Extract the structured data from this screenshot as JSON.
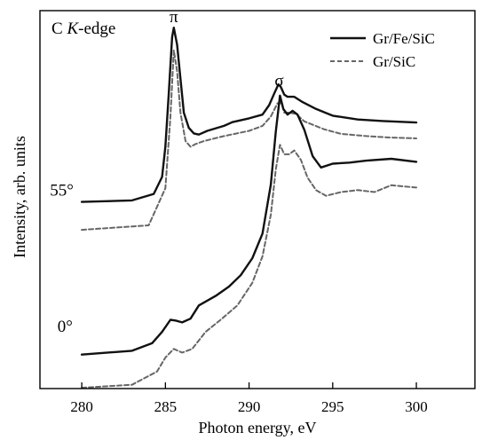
{
  "chart_data": {
    "type": "line",
    "title": "C K-edge",
    "title_parts": {
      "prefix": "C ",
      "italic": "K",
      "suffix": "-edge"
    },
    "xlabel": "Photon energy, eV",
    "ylabel": "Intensity, arb. units",
    "xlim": [
      277.5,
      303.5
    ],
    "ylim": [
      0,
      10
    ],
    "xticks": [
      280,
      285,
      290,
      295,
      300
    ],
    "xtick_labels": [
      "280",
      "285",
      "290",
      "295",
      "300"
    ],
    "y_ticks_shown": false,
    "grid": false,
    "legend_position": "top-right",
    "legend": [
      {
        "label": "Gr/Fe/SiC",
        "style": "solid",
        "color": "#111111"
      },
      {
        "label": "Gr/SiC",
        "style": "dashed",
        "color": "#666666"
      }
    ],
    "annotations": [
      {
        "text": "π",
        "x": 285.5,
        "y": 9.7
      },
      {
        "text": "σ",
        "x": 291.8,
        "y": 8.0
      },
      {
        "text": "55°",
        "x": 278.8,
        "y": 5.1
      },
      {
        "text": "0°",
        "x": 279.0,
        "y": 1.5
      }
    ],
    "series": [
      {
        "name": "Gr/Fe/SiC",
        "group": "55°",
        "style": "solid",
        "x": [
          280.0,
          283.0,
          284.3,
          284.8,
          285.0,
          285.2,
          285.4,
          285.5,
          285.7,
          285.9,
          286.1,
          286.4,
          286.7,
          287.0,
          287.5,
          288.5,
          289.0,
          290.0,
          290.8,
          291.2,
          291.5,
          291.75,
          291.9,
          292.1,
          292.3,
          292.7,
          293.2,
          294.0,
          295.0,
          296.5,
          298.0,
          300.0
        ],
        "y": [
          4.94,
          4.98,
          5.15,
          5.6,
          6.4,
          7.8,
          9.3,
          9.55,
          9.1,
          8.2,
          7.3,
          6.9,
          6.75,
          6.72,
          6.82,
          6.95,
          7.05,
          7.15,
          7.25,
          7.5,
          7.8,
          8.05,
          7.98,
          7.78,
          7.72,
          7.72,
          7.58,
          7.4,
          7.22,
          7.12,
          7.08,
          7.04
        ]
      },
      {
        "name": "Gr/SiC",
        "group": "55°",
        "style": "dashed",
        "x": [
          280.0,
          284.0,
          285.0,
          285.3,
          285.5,
          285.7,
          285.9,
          286.2,
          286.5,
          286.8,
          287.3,
          288.5,
          290.0,
          290.8,
          291.3,
          291.7,
          291.95,
          292.1,
          292.4,
          292.8,
          293.3,
          294.5,
          295.5,
          297.0,
          298.5,
          300.0
        ],
        "y": [
          4.2,
          4.32,
          5.3,
          7.2,
          8.95,
          8.4,
          7.3,
          6.55,
          6.4,
          6.47,
          6.55,
          6.68,
          6.82,
          6.95,
          7.2,
          7.55,
          7.55,
          7.3,
          7.3,
          7.27,
          7.07,
          6.86,
          6.74,
          6.68,
          6.64,
          6.62
        ]
      },
      {
        "name": "Gr/Fe/SiC",
        "group": "0°",
        "style": "solid",
        "x": [
          280.0,
          283.0,
          284.2,
          284.8,
          285.3,
          285.6,
          286.0,
          286.5,
          287.0,
          288.0,
          288.8,
          289.5,
          290.2,
          290.8,
          291.3,
          291.6,
          291.85,
          292.05,
          292.3,
          292.6,
          292.9,
          293.3,
          293.8,
          294.3,
          295.0,
          296.0,
          297.0,
          298.5,
          300.0
        ],
        "y": [
          0.9,
          1.0,
          1.2,
          1.5,
          1.82,
          1.8,
          1.75,
          1.85,
          2.2,
          2.45,
          2.7,
          3.0,
          3.45,
          4.1,
          5.4,
          6.8,
          7.75,
          7.4,
          7.25,
          7.35,
          7.25,
          6.85,
          6.15,
          5.85,
          5.95,
          5.98,
          6.03,
          6.08,
          6.0
        ]
      },
      {
        "name": "Gr/SiC",
        "group": "0°",
        "style": "dashed",
        "x": [
          280.0,
          283.0,
          284.5,
          285.0,
          285.5,
          286.0,
          286.6,
          287.4,
          288.3,
          289.3,
          290.2,
          290.8,
          291.3,
          291.6,
          291.85,
          292.1,
          292.4,
          292.7,
          293.1,
          293.5,
          294.0,
          294.6,
          295.5,
          296.5,
          297.5,
          298.5,
          300.0
        ],
        "y": [
          0.02,
          0.1,
          0.45,
          0.82,
          1.05,
          0.95,
          1.05,
          1.5,
          1.82,
          2.2,
          2.8,
          3.5,
          4.6,
          5.8,
          6.45,
          6.2,
          6.2,
          6.3,
          6.05,
          5.58,
          5.25,
          5.1,
          5.2,
          5.25,
          5.2,
          5.38,
          5.32
        ]
      }
    ]
  }
}
